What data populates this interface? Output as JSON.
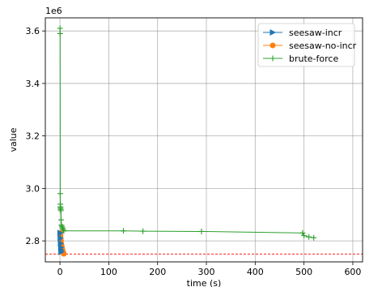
{
  "chart_data": {
    "type": "line",
    "title": "",
    "xlabel": "time (s)",
    "ylabel": "value",
    "y_offset_label": "1e6",
    "xlim": [
      -30,
      620
    ],
    "ylim": [
      2720000,
      3650000
    ],
    "x_ticks": [
      0,
      100,
      200,
      300,
      400,
      500,
      600
    ],
    "y_ticks": [
      2800000,
      3000000,
      3200000,
      3400000,
      3600000
    ],
    "x_tick_labels": [
      "0",
      "100",
      "200",
      "300",
      "400",
      "500",
      "600"
    ],
    "y_tick_labels": [
      "2.8",
      "3.0",
      "3.2",
      "3.4",
      "3.6"
    ],
    "grid": true,
    "legend": "top-right",
    "reference_line": {
      "y": 2750000,
      "color": "#ff0000",
      "style": "dashed"
    },
    "series": [
      {
        "name": "seesaw-incr",
        "color": "#1f77b4",
        "marker": "triangle-right",
        "x": [
          0.5,
          1.0,
          1.5,
          2.0,
          2.5,
          3.0
        ],
        "y": [
          2830000,
          2810000,
          2790000,
          2775000,
          2765000,
          2758000
        ]
      },
      {
        "name": "seesaw-no-incr",
        "color": "#ff7f0e",
        "marker": "circle",
        "x": [
          0.5,
          1.0,
          1.5,
          2.0,
          2.5,
          3.0,
          3.5,
          4.0,
          4.5,
          5.0,
          5.5,
          6.0,
          6.5,
          7.0,
          7.5,
          8.0
        ],
        "y": [
          2830000,
          2820000,
          2810000,
          2800000,
          2790000,
          2785000,
          2780000,
          2775000,
          2770000,
          2765000,
          2762000,
          2758000,
          2755000,
          2753000,
          2752000,
          2751000
        ]
      },
      {
        "name": "brute-force",
        "color": "#2ca02c",
        "marker": "plus",
        "x": [
          0.2,
          0.4,
          0.6,
          0.8,
          1.0,
          1.2,
          1.5,
          2.0,
          2.5,
          3.0,
          4.0,
          5.0,
          6.0,
          7.0,
          8.0,
          130,
          170,
          290,
          497,
          500,
          510,
          520
        ],
        "y": [
          3610000,
          3590000,
          2980000,
          2940000,
          2930000,
          2925000,
          2920000,
          2915000,
          2880000,
          2860000,
          2855000,
          2850000,
          2845000,
          2840000,
          2838000,
          2838000,
          2837000,
          2836000,
          2830000,
          2820000,
          2815000,
          2812000
        ]
      }
    ]
  }
}
